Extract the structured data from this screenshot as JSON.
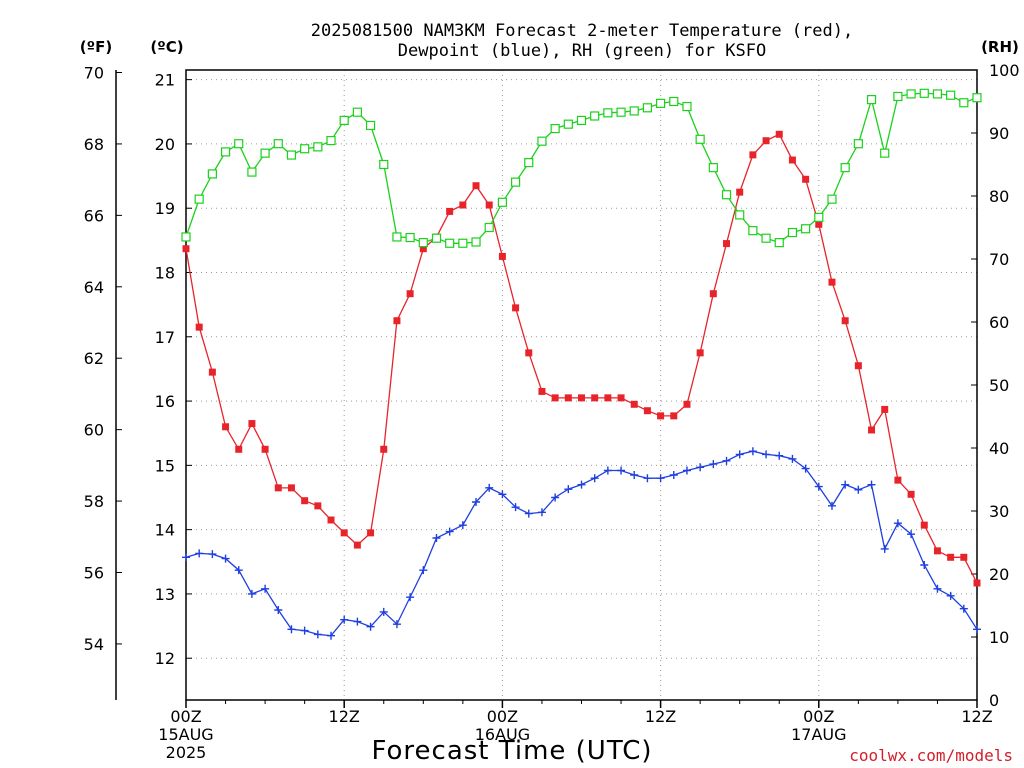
{
  "chart_data": {
    "type": "line",
    "title_line1": "2025081500 NAM3KM Forecast 2-meter Temperature (red),",
    "title_line2": "Dewpoint (blue), RH (green) for KSFO",
    "xlabel": "Forecast Time (UTC)",
    "credit": "coolwx.com/models",
    "unit_f": "(ºF)",
    "unit_c": "(ºC)",
    "unit_rh": "(RH)",
    "x_range_hours": [
      0,
      60
    ],
    "x_ticks": [
      {
        "hour": 0,
        "lines": [
          "00Z",
          "15AUG",
          "2025"
        ]
      },
      {
        "hour": 12,
        "lines": [
          "12Z"
        ]
      },
      {
        "hour": 24,
        "lines": [
          "00Z",
          "16AUG"
        ]
      },
      {
        "hour": 36,
        "lines": [
          "12Z"
        ]
      },
      {
        "hour": 48,
        "lines": [
          "00Z",
          "17AUG"
        ]
      },
      {
        "hour": 60,
        "lines": [
          "12Z"
        ]
      }
    ],
    "y_c_range": [
      11.35,
      21.15
    ],
    "y_c_ticks": [
      "12",
      "13",
      "14",
      "15",
      "16",
      "17",
      "18",
      "19",
      "20",
      "21"
    ],
    "y_f_ticks": [
      "54",
      "56",
      "58",
      "60",
      "62",
      "64",
      "66",
      "68",
      "70"
    ],
    "y_rh_range": [
      0,
      100
    ],
    "y_rh_ticks": [
      "0",
      "10",
      "20",
      "30",
      "40",
      "50",
      "60",
      "70",
      "80",
      "90",
      "100"
    ],
    "grid": true,
    "colors": {
      "temperature": "#e8242b",
      "dewpoint": "#1f3fe0",
      "rh": "#1bd11b",
      "credit": "#d21f2a"
    },
    "series": [
      {
        "name": "Temperature (red)",
        "unit": "C",
        "marker": "filled-square",
        "x": [
          0,
          1,
          2,
          3,
          4,
          5,
          6,
          7,
          8,
          9,
          10,
          11,
          12,
          13,
          14,
          15,
          16,
          17,
          18,
          19,
          20,
          21,
          22,
          23,
          24,
          25,
          26,
          27,
          28,
          29,
          30,
          31,
          32,
          33,
          34,
          35,
          36,
          37,
          38,
          39,
          40,
          41,
          42,
          43,
          44,
          45,
          46,
          47,
          48,
          49,
          50,
          51,
          52,
          53,
          54,
          55,
          56,
          57,
          58,
          59,
          60
        ],
        "values": [
          18.37,
          17.15,
          16.45,
          15.6,
          15.25,
          15.65,
          15.25,
          14.65,
          14.65,
          14.45,
          14.37,
          14.15,
          13.95,
          13.76,
          13.95,
          15.25,
          17.25,
          17.67,
          18.37,
          18.55,
          18.95,
          19.05,
          19.35,
          19.05,
          18.25,
          17.45,
          16.75,
          16.15,
          16.05,
          16.05,
          16.05,
          16.05,
          16.05,
          16.05,
          15.95,
          15.85,
          15.77,
          15.77,
          15.95,
          16.75,
          17.67,
          18.45,
          19.25,
          19.83,
          20.05,
          20.15,
          19.75,
          19.45,
          18.75,
          17.85,
          17.25,
          16.55,
          15.55,
          15.87,
          14.77,
          14.55,
          14.07,
          13.67,
          13.57,
          13.57,
          13.17
        ]
      },
      {
        "name": "Dewpoint (blue)",
        "unit": "C",
        "marker": "plus",
        "x": [
          0,
          1,
          2,
          3,
          4,
          5,
          6,
          7,
          8,
          9,
          10,
          11,
          12,
          13,
          14,
          15,
          16,
          17,
          18,
          19,
          20,
          21,
          22,
          23,
          24,
          25,
          26,
          27,
          28,
          29,
          30,
          31,
          32,
          33,
          34,
          35,
          36,
          37,
          38,
          39,
          40,
          41,
          42,
          43,
          44,
          45,
          46,
          47,
          48,
          49,
          50,
          51,
          52,
          53,
          54,
          55,
          56,
          57,
          58,
          59,
          60
        ],
        "values": [
          13.57,
          13.63,
          13.62,
          13.55,
          13.37,
          13.0,
          13.08,
          12.75,
          12.45,
          12.43,
          12.37,
          12.35,
          12.6,
          12.57,
          12.49,
          12.72,
          12.53,
          12.95,
          13.37,
          13.87,
          13.97,
          14.07,
          14.43,
          14.65,
          14.55,
          14.35,
          14.25,
          14.27,
          14.5,
          14.63,
          14.7,
          14.8,
          14.92,
          14.92,
          14.85,
          14.8,
          14.8,
          14.85,
          14.92,
          14.97,
          15.02,
          15.07,
          15.17,
          15.22,
          15.17,
          15.15,
          15.1,
          14.95,
          14.67,
          14.37,
          14.7,
          14.62,
          14.7,
          13.7,
          14.1,
          13.93,
          13.45,
          13.08,
          12.97,
          12.77,
          12.45
        ]
      },
      {
        "name": "RH (green)",
        "unit": "%",
        "marker": "open-square",
        "x": [
          0,
          1,
          2,
          3,
          4,
          5,
          6,
          7,
          8,
          9,
          10,
          11,
          12,
          13,
          14,
          15,
          16,
          17,
          18,
          19,
          20,
          21,
          22,
          23,
          24,
          25,
          26,
          27,
          28,
          29,
          30,
          31,
          32,
          33,
          34,
          35,
          36,
          37,
          38,
          39,
          40,
          41,
          42,
          43,
          44,
          45,
          46,
          47,
          48,
          49,
          50,
          51,
          52,
          53,
          54,
          55,
          56,
          57,
          58,
          59,
          60
        ],
        "values": [
          73.5,
          79.5,
          83.5,
          87.0,
          88.3,
          83.8,
          86.8,
          88.3,
          86.5,
          87.5,
          87.8,
          88.8,
          92.0,
          93.3,
          91.2,
          85.0,
          73.5,
          73.4,
          72.6,
          73.3,
          72.5,
          72.5,
          72.7,
          75.0,
          79.0,
          82.2,
          85.3,
          88.7,
          90.7,
          91.4,
          92.0,
          92.7,
          93.2,
          93.3,
          93.5,
          94.0,
          94.7,
          95.0,
          94.2,
          89.0,
          84.5,
          80.2,
          77.0,
          74.5,
          73.3,
          72.6,
          74.2,
          74.8,
          76.6,
          79.5,
          84.5,
          88.3,
          95.3,
          86.8,
          95.8,
          96.2,
          96.3,
          96.2,
          96.0,
          94.8,
          95.6
        ]
      }
    ]
  }
}
